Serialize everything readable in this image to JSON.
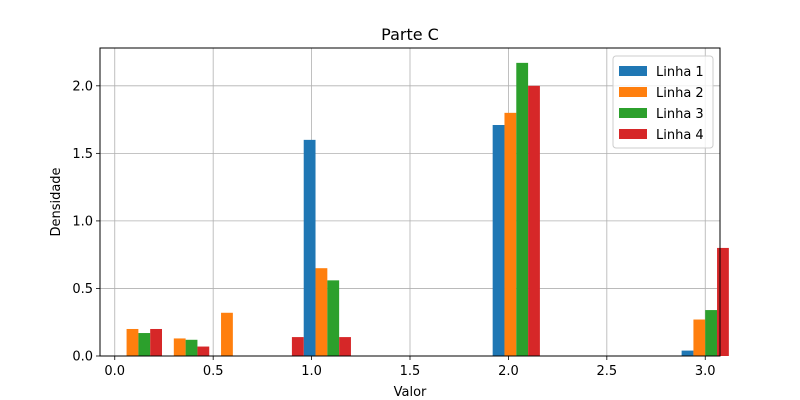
{
  "chart_data": {
    "type": "bar",
    "title": "Parte C",
    "xlabel": "Valor",
    "ylabel": "Densidade",
    "xlim": [
      -0.075,
      3.075
    ],
    "ylim": [
      0,
      2.28
    ],
    "xticks": [
      "0.0",
      "0.5",
      "1.0",
      "1.5",
      "2.0",
      "2.5",
      "3.0"
    ],
    "yticks": [
      "0.0",
      "0.5",
      "1.0",
      "1.5",
      "2.0"
    ],
    "grid": true,
    "legend_position": "top-right",
    "bin_width": 0.24,
    "bins": [
      0,
      0.24,
      0.48,
      0.72,
      0.96,
      1.2,
      1.44,
      1.68,
      1.92,
      2.16,
      2.4,
      2.64,
      2.88
    ],
    "series": [
      {
        "name": "Linha 1",
        "color": "#1f77b4",
        "values": [
          0,
          0,
          0,
          0,
          1.6,
          0,
          0,
          0,
          1.71,
          0,
          0,
          0,
          0.04
        ]
      },
      {
        "name": "Linha 2",
        "color": "#ff7f0e",
        "values": [
          0.2,
          0.13,
          0.32,
          0,
          0.65,
          0,
          0,
          0,
          1.8,
          0,
          0,
          0,
          0.27
        ]
      },
      {
        "name": "Linha 3",
        "color": "#2ca02c",
        "values": [
          0.17,
          0.12,
          0,
          0,
          0.56,
          0,
          0,
          0,
          2.17,
          0,
          0,
          0,
          0.34
        ]
      },
      {
        "name": "Linha 4",
        "color": "#d62728",
        "values": [
          0.2,
          0.07,
          0,
          0.14,
          0.14,
          0,
          0,
          0,
          2.0,
          0,
          0,
          0,
          0.8
        ]
      }
    ]
  }
}
